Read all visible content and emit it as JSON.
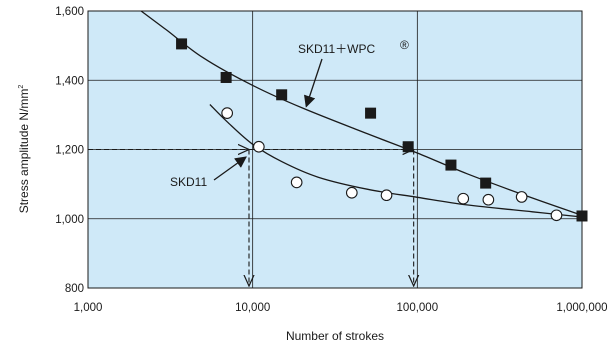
{
  "chart_data": {
    "type": "scatter",
    "title": "",
    "xlabel": "Number of strokes",
    "ylabel": "Stress amplitude N/mm",
    "ylabel_sup": "2",
    "x_scale": "log",
    "xlim": [
      1000,
      1000000
    ],
    "ylim": [
      800,
      1600
    ],
    "x_ticks": [
      1000,
      10000,
      100000,
      1000000
    ],
    "x_tick_labels": [
      "1,000",
      "10,000",
      "100,000",
      "1,000,000"
    ],
    "y_ticks": [
      800,
      1000,
      1200,
      1400,
      1600
    ],
    "y_tick_labels": [
      "800",
      "1,000",
      "1,200",
      "1,400",
      "1,600"
    ],
    "grid": true,
    "plot_background": "#cfe9f8",
    "series": [
      {
        "name": "SKD11＋WPC",
        "name_mark": "®",
        "marker": "filled-square",
        "color": "#1a1a1a",
        "points": [
          [
            3700,
            1505
          ],
          [
            6900,
            1408
          ],
          [
            15000,
            1358
          ],
          [
            52000,
            1305
          ],
          [
            88000,
            1208
          ],
          [
            160000,
            1155
          ],
          [
            260000,
            1103
          ],
          [
            1000000,
            1008
          ]
        ],
        "curve": [
          [
            2100,
            1600
          ],
          [
            3000,
            1545
          ],
          [
            5000,
            1465
          ],
          [
            10000,
            1385
          ],
          [
            20000,
            1320
          ],
          [
            50000,
            1245
          ],
          [
            100000,
            1190
          ],
          [
            200000,
            1130
          ],
          [
            500000,
            1060
          ],
          [
            1000000,
            1010
          ]
        ]
      },
      {
        "name": "SKD11",
        "marker": "open-circle",
        "color": "#1a1a1a",
        "points": [
          [
            7000,
            1305
          ],
          [
            10900,
            1208
          ],
          [
            18500,
            1105
          ],
          [
            40000,
            1075
          ],
          [
            65000,
            1068
          ],
          [
            190000,
            1058
          ],
          [
            270000,
            1055
          ],
          [
            430000,
            1063
          ],
          [
            700000,
            1010
          ]
        ],
        "curve": [
          [
            5500,
            1330
          ],
          [
            7000,
            1280
          ],
          [
            10000,
            1215
          ],
          [
            15000,
            1165
          ],
          [
            25000,
            1120
          ],
          [
            50000,
            1085
          ],
          [
            100000,
            1062
          ],
          [
            200000,
            1040
          ],
          [
            500000,
            1020
          ],
          [
            1000000,
            1005
          ]
        ]
      }
    ],
    "reference_lines": [
      {
        "y": 1200,
        "from_x": 1000,
        "to_x": 9500,
        "down_at_x": 9500
      },
      {
        "y": 1200,
        "from_x": 9500,
        "to_x": 95000,
        "down_at_x": 95000
      }
    ]
  }
}
